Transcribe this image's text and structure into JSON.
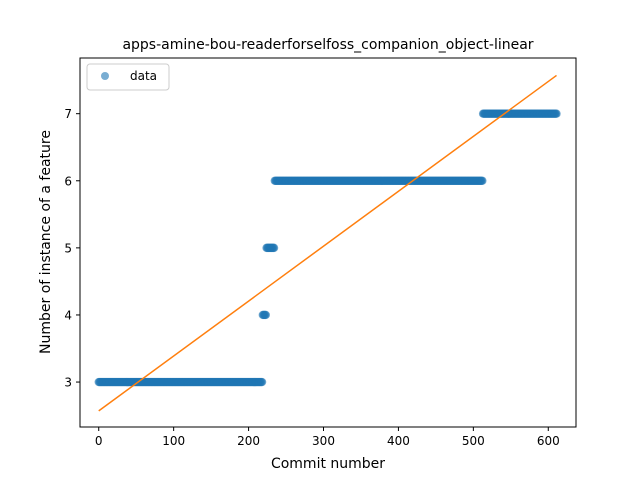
{
  "chart_data": {
    "type": "scatter",
    "title": "apps-amine-bou-readerforselfoss_companion_object-linear",
    "xlabel": "Commit number",
    "ylabel": "Number of instance of a feature",
    "xlim": [
      -25,
      637
    ],
    "ylim": [
      2.33,
      7.83
    ],
    "xticks": [
      0,
      100,
      200,
      300,
      400,
      500,
      600
    ],
    "yticks": [
      3,
      4,
      5,
      6,
      7
    ],
    "grid": false,
    "legend": {
      "position": "top-left",
      "entries": [
        "data"
      ]
    },
    "colors": {
      "data": "#1f77b4",
      "fit": "#ff7f0e"
    },
    "series": [
      {
        "name": "data",
        "kind": "points",
        "segments": [
          {
            "x_start": 0,
            "x_end": 218,
            "y": 3
          },
          {
            "x_start": 219,
            "x_end": 223,
            "y": 4
          },
          {
            "x_start": 224,
            "x_end": 234,
            "y": 5
          },
          {
            "x_start": 235,
            "x_end": 512,
            "y": 6
          },
          {
            "x_start": 513,
            "x_end": 611,
            "y": 7
          }
        ]
      },
      {
        "kind": "fit-line",
        "x": [
          0,
          611
        ],
        "y": [
          2.57,
          7.57
        ]
      }
    ]
  }
}
